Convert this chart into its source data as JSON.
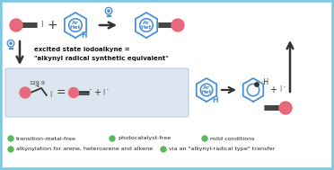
{
  "bg_color": "#ffffff",
  "border_color": "#7ec8e3",
  "pink_color": "#e8697d",
  "blue_color": "#4a90d9",
  "green_bullet": "#5cb85c",
  "gray_box_color": "#dce6f1",
  "gray_box_edge": "#b8cce4",
  "text_excited_line1": "excited state iodoalkyne =",
  "text_excited_line2": "\"alkynyl radical synthetic equivalent\"",
  "text_bullet1": "transition-metal-free",
  "text_bullet2": "photocatalyst-free",
  "text_bullet3": "mild conditions",
  "text_bullet4": "alkynylation for arene, heteroarene and alkene",
  "text_bullet5": "via an \"alkynyl-radical type\" transfer",
  "angle_label": "129.9"
}
